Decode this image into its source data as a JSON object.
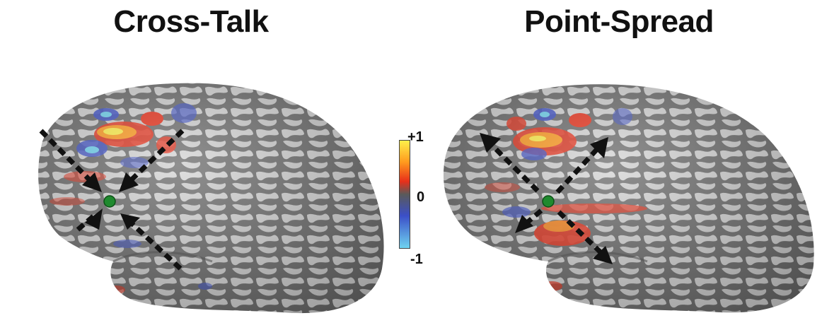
{
  "panels": [
    {
      "title": "Cross-Talk",
      "arrow_direction": "inward"
    },
    {
      "title": "Point-Spread",
      "arrow_direction": "outward"
    }
  ],
  "colorbar": {
    "max_label": "+1",
    "mid_label": "0",
    "min_label": "-1",
    "colors": [
      "#fff04a",
      "#ff9a1e",
      "#e8301a",
      "#5a5a5a",
      "#3b4fc8",
      "#6fd3f0"
    ]
  },
  "colors": {
    "cortex_light": "#d2d2d2",
    "cortex_dark": "#6a6a6a",
    "seed": "#1f8a2e",
    "arrow": "#111111"
  }
}
